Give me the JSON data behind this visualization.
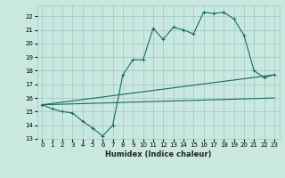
{
  "bg_color": "#c8e8e0",
  "grid_color": "#a0c8c0",
  "line_color": "#1a6b5a",
  "xlabel": "Humidex (Indice chaleur)",
  "xlim": [
    -0.5,
    23.5
  ],
  "ylim": [
    13,
    22.8
  ],
  "yticks": [
    13,
    14,
    15,
    16,
    17,
    18,
    19,
    20,
    21,
    22
  ],
  "xticks": [
    0,
    1,
    2,
    3,
    4,
    5,
    6,
    7,
    8,
    9,
    10,
    11,
    12,
    13,
    14,
    15,
    16,
    17,
    18,
    19,
    20,
    21,
    22,
    23
  ],
  "main_x": [
    0,
    1,
    2,
    3,
    4,
    5,
    6,
    7,
    8,
    9,
    10,
    11,
    12,
    13,
    14,
    15,
    16,
    17,
    18,
    19,
    20,
    21,
    22,
    23
  ],
  "main_y": [
    15.5,
    15.2,
    15.0,
    14.9,
    14.3,
    13.8,
    13.2,
    14.0,
    17.7,
    18.8,
    18.8,
    21.1,
    20.3,
    21.2,
    21.0,
    20.7,
    22.3,
    22.2,
    22.3,
    21.8,
    20.6,
    18.0,
    17.5,
    17.7
  ],
  "trend1_x": [
    0,
    23
  ],
  "trend1_y": [
    15.5,
    16.0
  ],
  "trend2_x": [
    0,
    23
  ],
  "trend2_y": [
    15.5,
    17.7
  ],
  "xlabel_fontsize": 6,
  "tick_fontsize": 5
}
